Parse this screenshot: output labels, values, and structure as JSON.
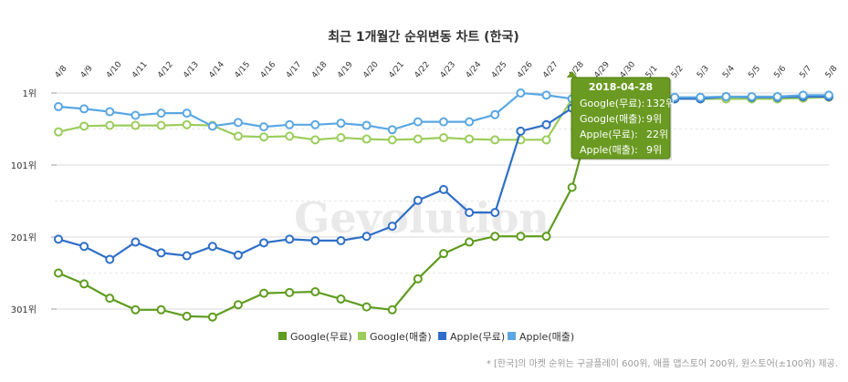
{
  "watermark": "Gevolution",
  "footnote": "* [한국]의 마켓 순위는 구글플레이 600위, 애플 앱스토어 200위, 원스토어(±100위) 제공.",
  "chart_data": {
    "type": "line",
    "title": "최근 1개월간 순위변동 차트 (한국)",
    "xlabel": "",
    "ylabel": "",
    "categories": [
      "4/8",
      "4/9",
      "4/10",
      "4/11",
      "4/12",
      "4/13",
      "4/14",
      "4/15",
      "4/16",
      "4/17",
      "4/18",
      "4/19",
      "4/20",
      "4/21",
      "4/22",
      "4/23",
      "4/24",
      "4/25",
      "4/26",
      "4/27",
      "4/28",
      "4/29",
      "4/30",
      "5/1",
      "5/2",
      "5/3",
      "5/4",
      "5/5",
      "5/6",
      "5/7",
      "5/8"
    ],
    "y_tick_labels": [
      "1위",
      "101위",
      "201위",
      "301위"
    ],
    "y_tick_values": [
      1,
      101,
      201,
      301
    ],
    "ylim": [
      1,
      301
    ],
    "y_inverted": true,
    "grid": "horizontal-dashed",
    "legend_position": "bottom",
    "series": [
      {
        "name": "Google(무료)",
        "color": "#5f9c1f",
        "values": [
          251,
          266,
          286,
          302,
          302,
          311,
          312,
          295,
          279,
          278,
          277,
          287,
          298,
          302,
          259,
          224,
          208,
          200,
          200,
          200,
          132,
          1,
          9,
          10,
          9,
          9,
          9,
          9,
          9,
          8,
          6
        ]
      },
      {
        "name": "Google(매출)",
        "color": "#9ccd5b",
        "values": [
          55,
          47,
          46,
          46,
          46,
          45,
          46,
          61,
          62,
          61,
          66,
          63,
          65,
          66,
          65,
          63,
          65,
          66,
          66,
          66,
          9,
          9,
          10,
          9,
          9,
          9,
          9,
          9,
          9,
          8,
          7
        ]
      },
      {
        "name": "Apple(무료)",
        "color": "#2f6fc7",
        "values": [
          204,
          214,
          232,
          208,
          223,
          227,
          214,
          226,
          209,
          204,
          206,
          206,
          200,
          186,
          150,
          135,
          167,
          167,
          54,
          45,
          22,
          9,
          9,
          9,
          9,
          9,
          6,
          7,
          7,
          6,
          6
        ]
      },
      {
        "name": "Apple(매출)",
        "color": "#5aa7e3",
        "values": [
          20,
          23,
          27,
          32,
          29,
          29,
          47,
          42,
          48,
          45,
          45,
          43,
          46,
          52,
          41,
          41,
          41,
          31,
          1,
          4,
          9,
          9,
          6,
          7,
          7,
          7,
          6,
          6,
          6,
          4,
          4
        ]
      }
    ],
    "tooltip": {
      "title": "2018-04-28",
      "lines": [
        {
          "label": "Google(무료):",
          "value": "132위"
        },
        {
          "label": "Google(매출):",
          "value": "9위"
        },
        {
          "label": "Apple(무료):",
          "value": "22위"
        },
        {
          "label": "Apple(매출):",
          "value": "9위"
        }
      ],
      "category_index": 20
    }
  }
}
